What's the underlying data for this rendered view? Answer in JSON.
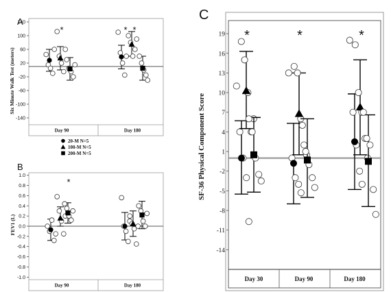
{
  "chart_data": [
    {
      "id": "A",
      "type": "scatter",
      "panel_label": "A",
      "ylabel": "Six Minute Walk Test (meters)",
      "xlabel": "",
      "categories": [
        "Day 90",
        "Day 180"
      ],
      "yticks": [
        "140",
        "100",
        "60",
        "20",
        "-20",
        "-60",
        "-100",
        "-140"
      ],
      "ylim": [
        -160,
        150
      ],
      "reference_line": 10,
      "legend": [
        "20-M N=5",
        "100-M N=5",
        "200-M N=5"
      ],
      "annotations": [
        "*",
        "*",
        "*"
      ],
      "annotation_text": "*",
      "series": [
        {
          "name": "20-M N=5",
          "marker": "circle",
          "means": [
            28,
            38
          ],
          "sd_low": [
            -4,
            3
          ],
          "sd_high": [
            60,
            72
          ],
          "individuals": [
            [
              45,
              15,
              5,
              -10,
              60
            ],
            [
              110,
              50,
              20,
              -15,
              40
            ]
          ]
        },
        {
          "name": "100-M N=5",
          "marker": "triangle",
          "means": [
            35,
            75
          ],
          "sd_low": [
            0,
            40
          ],
          "sd_high": [
            68,
            112
          ],
          "individuals": [
            [
              112,
              40,
              20,
              -5,
              60
            ],
            [
              100,
              80,
              40,
              60,
              90
            ]
          ]
        },
        {
          "name": "200-M N=5",
          "marker": "square",
          "means": [
            3,
            5
          ],
          "sd_low": [
            -30,
            -30
          ],
          "sd_high": [
            36,
            40
          ],
          "individuals": [
            [
              30,
              5,
              -5,
              -20,
              15
            ],
            [
              40,
              20,
              0,
              -15,
              -30
            ]
          ]
        }
      ],
      "stars": [
        {
          "category": "Day 90",
          "value": 122
        },
        {
          "category": "Day 180",
          "value": 130
        },
        {
          "category": "Day 180",
          "value": 130
        }
      ]
    },
    {
      "id": "B",
      "type": "scatter",
      "panel_label": "B",
      "ylabel": "FEV1 (L)",
      "xlabel": "",
      "categories": [
        "Day 90",
        "Day 180"
      ],
      "yticks": [
        "1.0",
        "0.8",
        "0.6",
        "0.4",
        "0.2",
        "0.0",
        "-0.2",
        "-0.4",
        "-0.6",
        "-0.8",
        "-1.0"
      ],
      "ylim": [
        -1.05,
        1.05
      ],
      "reference_line": 0,
      "annotations": [
        "*"
      ],
      "annotation_text": "*",
      "series": [
        {
          "name": "20-M N=5",
          "marker": "circle",
          "means": [
            -0.07,
            0.0
          ],
          "sd_low": [
            -0.28,
            -0.27
          ],
          "sd_high": [
            0.14,
            0.27
          ],
          "individuals": [
            [
              0.0,
              -0.1,
              0.12,
              -0.28,
              -0.15
            ],
            [
              0.56,
              0.0,
              -0.1,
              -0.3,
              0.1
            ]
          ]
        },
        {
          "name": "100-M N=5",
          "marker": "triangle",
          "means": [
            0.16,
            0.05
          ],
          "sd_low": [
            0.0,
            -0.2
          ],
          "sd_high": [
            0.38,
            0.3
          ],
          "individuals": [
            [
              0.58,
              0.3,
              0.1,
              -0.15,
              0.2
            ],
            [
              0.2,
              0.05,
              -0.05,
              -0.35,
              0.0
            ]
          ]
        },
        {
          "name": "200-M N=5",
          "marker": "square",
          "means": [
            0.26,
            0.22
          ],
          "sd_low": [
            0.06,
            -0.05
          ],
          "sd_high": [
            0.46,
            0.49
          ],
          "individuals": [
            [
              0.44,
              0.35,
              0.2,
              0.12,
              0.3
            ],
            [
              0.4,
              0.3,
              0.1,
              0.0,
              0.25
            ]
          ]
        }
      ],
      "stars": [
        {
          "category": "Day 90",
          "value": 0.78
        }
      ]
    },
    {
      "id": "C",
      "type": "scatter",
      "panel_label": "C",
      "ylabel": "SF-36 Physical Component Score",
      "xlabel": "",
      "categories": [
        "Day 30",
        "Day 90",
        "Day 180"
      ],
      "yticks": [
        "19",
        "16",
        "13",
        "10",
        "7",
        "4",
        "1",
        "-2",
        "-5",
        "-8",
        "-11",
        "-14"
      ],
      "ylim": [
        -17,
        21
      ],
      "reference_line": 0,
      "annotations": [
        "*",
        "*",
        "*"
      ],
      "annotation_text": "*",
      "series": [
        {
          "name": "20-M N=5",
          "marker": "circle",
          "means": [
            0.0,
            -0.8,
            2.5
          ],
          "sd_low": [
            -5.5,
            -7.0,
            -4.8
          ],
          "sd_high": [
            5.7,
            5.3,
            9.8
          ],
          "individuals": [
            [
              11,
              4,
              0,
              -3,
              -9.7
            ],
            [
              13,
              0,
              -3,
              -4,
              -5.3
            ],
            [
              18,
              7,
              2,
              -2,
              -4
            ]
          ]
        },
        {
          "name": "100-M N=5",
          "marker": "triangle",
          "means": [
            10.3,
            6.8,
            7.8
          ],
          "sd_low": [
            4.5,
            0.5,
            0.5
          ],
          "sd_high": [
            16.3,
            13.0,
            15.0
          ],
          "individuals": [
            [
              17.8,
              15,
              10,
              4,
              6
            ],
            [
              14,
              13,
              6,
              2,
              0.5
            ],
            [
              17.3,
              10,
              7,
              3,
              0
            ]
          ]
        },
        {
          "name": "200-M N=5",
          "marker": "square",
          "means": [
            0.5,
            -0.3,
            -0.5
          ],
          "sd_low": [
            -5.2,
            -6.0,
            -7.4
          ],
          "sd_high": [
            6.2,
            6.0,
            6.6
          ],
          "individuals": [
            [
              6,
              4,
              0,
              -2.5,
              -3.5
            ],
            [
              5,
              1,
              -1,
              -3,
              -4.5
            ],
            [
              7,
              3,
              2,
              -4.8,
              -8.6
            ]
          ]
        }
      ],
      "stars": [
        {
          "category": "Day 30",
          "value": 19.8
        },
        {
          "category": "Day 90",
          "value": 19.8
        },
        {
          "category": "Day 180",
          "value": 19.8
        }
      ]
    }
  ]
}
